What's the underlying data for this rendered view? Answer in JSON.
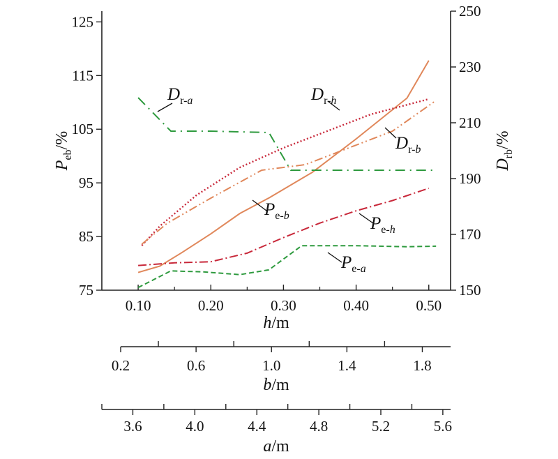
{
  "chart_data": {
    "type": "line",
    "x_axes": [
      {
        "name": "h",
        "label_var": "h",
        "label_unit": "/m",
        "ticks": [
          0.1,
          0.2,
          0.3,
          0.4,
          0.5
        ],
        "tick_labels": [
          "0.10",
          "0.20",
          "0.30",
          "0.40",
          "0.50"
        ],
        "range": [
          0.05,
          0.53
        ]
      },
      {
        "name": "b",
        "label_var": "b",
        "label_unit": "/m",
        "ticks": [
          0.2,
          0.6,
          1.0,
          1.4,
          1.8
        ],
        "tick_labels": [
          "0.2",
          "0.6",
          "1.0",
          "1.4",
          "1.8"
        ],
        "range": [
          0.2,
          1.95
        ]
      },
      {
        "name": "a",
        "label_var": "a",
        "label_unit": "/m",
        "ticks": [
          3.6,
          4.0,
          4.4,
          4.8,
          5.2,
          5.6
        ],
        "tick_labels": [
          "3.6",
          "4.0",
          "4.4",
          "4.8",
          "5.2",
          "5.6"
        ],
        "range": [
          3.4,
          5.65
        ]
      }
    ],
    "y_left": {
      "label_var": "P",
      "label_sub": "eb",
      "label_unit": "/%",
      "range": [
        75,
        127
      ],
      "ticks": [
        75,
        85,
        95,
        105,
        115,
        125
      ],
      "tick_labels": [
        "75",
        "85",
        "95",
        "105",
        "115",
        "125"
      ]
    },
    "y_right": {
      "label_var": "D",
      "label_sub": "rb",
      "label_unit": "/%",
      "range": [
        150,
        250
      ],
      "ticks": [
        150,
        170,
        190,
        210,
        230,
        250
      ],
      "tick_labels": [
        "150",
        "170",
        "190",
        "210",
        "230",
        "250"
      ]
    },
    "series": [
      {
        "key": "Pe-b",
        "axis": "left",
        "color": "#e0875a",
        "style": "solid",
        "x": [
          0.1,
          0.13,
          0.16,
          0.2,
          0.24,
          0.28,
          0.34,
          0.4,
          0.47,
          0.5
        ],
        "y": [
          78.3,
          79.5,
          82.0,
          85.5,
          89.3,
          92.2,
          97.0,
          103.2,
          110.8,
          117.8
        ]
      },
      {
        "key": "Pe-h",
        "axis": "left",
        "color": "#c8283a",
        "style": "dashdot",
        "x": [
          0.1,
          0.15,
          0.2,
          0.25,
          0.3,
          0.35,
          0.4,
          0.45,
          0.5
        ],
        "y": [
          79.6,
          80.1,
          80.3,
          81.9,
          84.8,
          87.5,
          89.8,
          91.7,
          94.0
        ]
      },
      {
        "key": "Pe-a",
        "axis": "left",
        "color": "#2e9a3e",
        "style": "dashed",
        "x": [
          0.1,
          0.145,
          0.19,
          0.24,
          0.28,
          0.325,
          0.4,
          0.47,
          0.51
        ],
        "y": [
          75.5,
          78.6,
          78.4,
          77.9,
          78.8,
          83.3,
          83.3,
          83.1,
          83.2
        ]
      },
      {
        "key": "Dr-h",
        "axis": "right",
        "color": "#c8283a",
        "style": "dotted",
        "x": [
          0.105,
          0.13,
          0.18,
          0.24,
          0.3,
          0.36,
          0.42,
          0.5
        ],
        "y": [
          166.0,
          173.0,
          184.0,
          194.0,
          201.0,
          207.0,
          213.0,
          218.5
        ]
      },
      {
        "key": "Dr-b",
        "axis": "right",
        "color": "#e0875a",
        "style": "dashdotdot",
        "x": [
          0.105,
          0.14,
          0.2,
          0.27,
          0.33,
          0.4,
          0.45,
          0.51
        ],
        "y": [
          166.5,
          174.0,
          183.0,
          193.0,
          195.0,
          202.0,
          207.0,
          218.0
        ]
      },
      {
        "key": "Dr-a",
        "axis": "right",
        "color": "#2e9a3e",
        "style": "longdash",
        "x": [
          0.1,
          0.145,
          0.2,
          0.28,
          0.31,
          0.35,
          0.42,
          0.51
        ],
        "y": [
          219.0,
          207.0,
          207.0,
          206.5,
          193.0,
          193.0,
          193.0,
          193.0
        ]
      }
    ],
    "annotations": [
      {
        "series": "Dr-a",
        "base": "D",
        "sub_pre": "r-",
        "sub_var": "a"
      },
      {
        "series": "Dr-h",
        "base": "D",
        "sub_pre": "r-",
        "sub_var": "h"
      },
      {
        "series": "Dr-b",
        "base": "D",
        "sub_pre": "r-",
        "sub_var": "b"
      },
      {
        "series": "Pe-b",
        "base": "P",
        "sub_pre": "e-",
        "sub_var": "b"
      },
      {
        "series": "Pe-h",
        "base": "P",
        "sub_pre": "e-",
        "sub_var": "h"
      },
      {
        "series": "Pe-a",
        "base": "P",
        "sub_pre": "e-",
        "sub_var": "a"
      }
    ],
    "grid": false,
    "legend": "none"
  }
}
